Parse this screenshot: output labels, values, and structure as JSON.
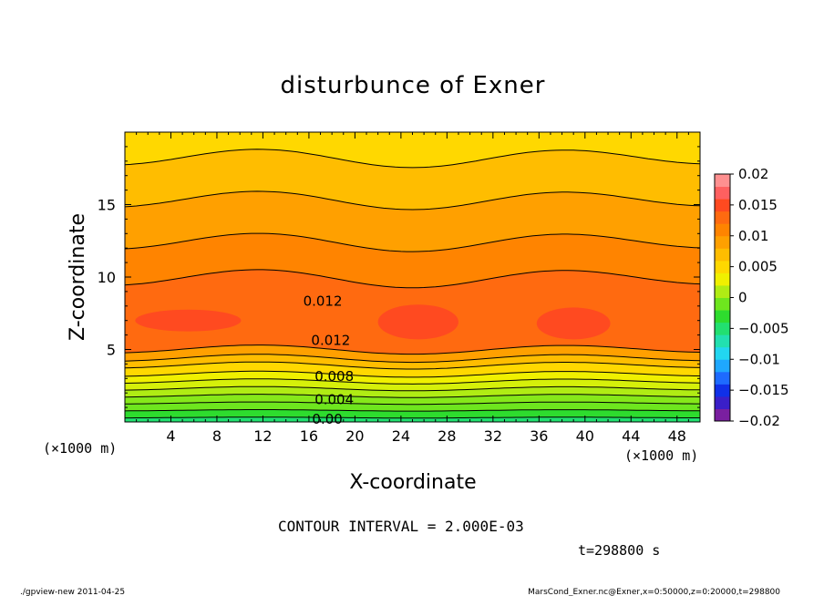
{
  "chart_data": {
    "type": "contour",
    "title": "disturbunce of Exner",
    "xlabel": "X-coordinate",
    "ylabel": "Z-coordinate",
    "x_unit": "(×1000 m)",
    "y_unit": "(×1000 m)",
    "xlim": [
      0,
      50
    ],
    "ylim": [
      0,
      20
    ],
    "x_ticks": [
      4,
      8,
      12,
      16,
      20,
      24,
      28,
      32,
      36,
      40,
      44,
      48
    ],
    "y_ticks": [
      5,
      10,
      15
    ],
    "contour_interval_text": "CONTOUR INTERVAL = 2.000E-03",
    "time_text": "t=298800 s",
    "contour_labels": [
      {
        "text": "0.012",
        "x": 17.2,
        "z": 8.4
      },
      {
        "text": "0.012",
        "x": 17.9,
        "z": 5.7
      },
      {
        "text": "0.008",
        "x": 18.2,
        "z": 3.2
      },
      {
        "text": "0.004",
        "x": 18.2,
        "z": 1.6
      },
      {
        "text": "0.00",
        "x": 17.6,
        "z": 0.25
      }
    ],
    "colorbar": {
      "ticks": [
        "0.02",
        "0.015",
        "0.01",
        "0.005",
        "0",
        "−0.005",
        "−0.01",
        "−0.015",
        "−0.02"
      ],
      "range": [
        -0.02,
        0.02
      ],
      "colors": [
        "#7a1fa0",
        "#3a1fc8",
        "#1030e8",
        "#1e6bff",
        "#1fa8ff",
        "#22d6f0",
        "#22e0b0",
        "#22e070",
        "#2edc2e",
        "#6ee61e",
        "#b0ec14",
        "#f0f000",
        "#ffd800",
        "#ffbd00",
        "#ffa000",
        "#ff8400",
        "#ff6a10",
        "#ff4a20",
        "#ff6060",
        "#ff9090"
      ]
    },
    "layers": [
      {
        "z": 0.0,
        "value": 0.0,
        "color": "#22e070"
      },
      {
        "z": 0.3,
        "value": 0.002,
        "color": "#2edc2e"
      },
      {
        "z": 0.8,
        "value": 0.003,
        "color": "#6ee61e"
      },
      {
        "z": 1.3,
        "value": 0.004,
        "color": "#86e81a"
      },
      {
        "z": 1.8,
        "value": 0.005,
        "color": "#b0ec14"
      },
      {
        "z": 2.3,
        "value": 0.006,
        "color": "#d6f00a"
      },
      {
        "z": 2.8,
        "value": 0.007,
        "color": "#f0f000"
      },
      {
        "z": 3.3,
        "value": 0.008,
        "color": "#ffd800"
      },
      {
        "z": 3.9,
        "value": 0.009,
        "color": "#ffbd00"
      },
      {
        "z": 4.4,
        "value": 0.01,
        "color": "#ffa000"
      },
      {
        "z": 5.0,
        "value": 0.012,
        "color": "#ff6a10"
      },
      {
        "z": 9.9,
        "value": 0.01,
        "color": "#ff8400"
      },
      {
        "z": 12.4,
        "value": 0.009,
        "color": "#ffa000"
      },
      {
        "z": 15.3,
        "value": 0.008,
        "color": "#ffbd00"
      },
      {
        "z": 18.2,
        "value": 0.007,
        "color": "#ffd800"
      }
    ],
    "max_patches_color": "#ff4a20",
    "max_patches": [
      {
        "x": 5.5,
        "z": 7.0,
        "rx": 4.6,
        "rz": 0.75
      },
      {
        "x": 25.5,
        "z": 6.9,
        "rx": 3.5,
        "rz": 1.2
      },
      {
        "x": 39.0,
        "z": 6.8,
        "rx": 3.2,
        "rz": 1.1
      }
    ]
  },
  "footer": {
    "left": "./gpview-new   2011-04-25",
    "right": "MarsCond_Exner.nc@Exner,x=0:50000,z=0:20000,t=298800"
  }
}
